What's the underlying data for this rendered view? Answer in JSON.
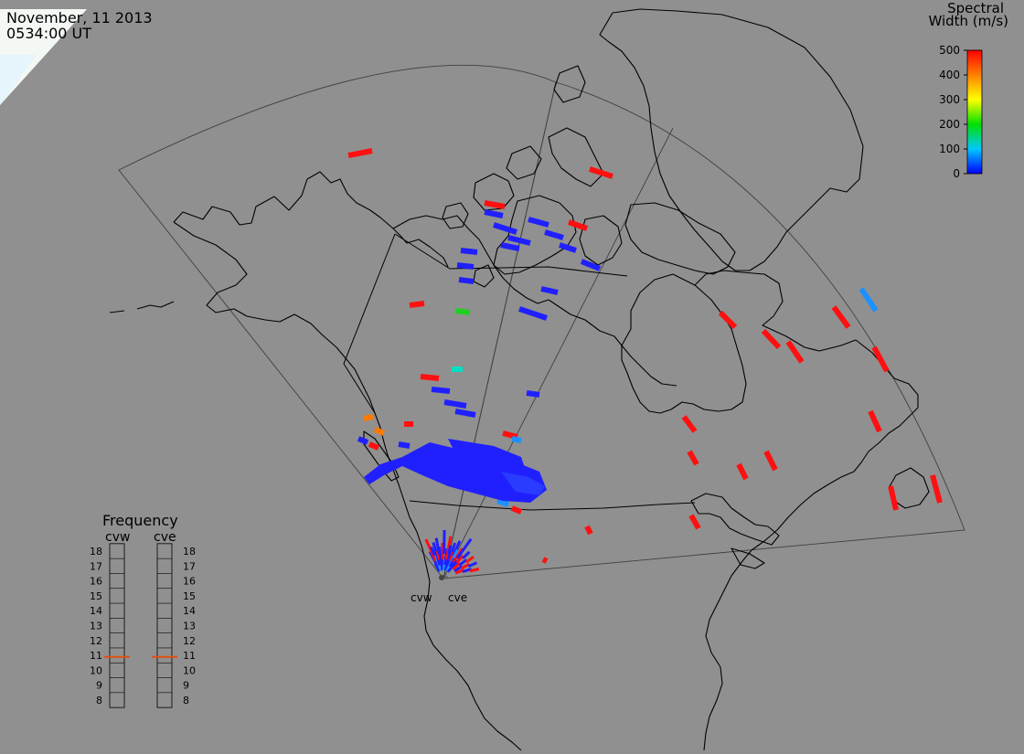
{
  "header": {
    "date": "November, 11 2013",
    "time": "0534:00 UT"
  },
  "colorbar": {
    "title_line1": "Spectral",
    "title_line2": "Width (m/s)",
    "ticks": [
      "500",
      "400",
      "300",
      "200",
      "100",
      "0"
    ],
    "min": 0,
    "max": 500
  },
  "frequency_panel": {
    "title": "Frequency",
    "radars": [
      "cvw",
      "cve"
    ],
    "ticks": [
      "18",
      "17",
      "16",
      "15",
      "14",
      "13",
      "12",
      "11",
      "10",
      "9",
      "8"
    ],
    "current_mhz": [
      10.9,
      10.9
    ]
  },
  "radar_labels": [
    "cvw",
    "cve"
  ],
  "colors": {
    "background": "#909090",
    "marker": "#e05010"
  },
  "map_data": {
    "type": "radar-map",
    "parameter": "Spectral Width",
    "units": "m/s"
  }
}
